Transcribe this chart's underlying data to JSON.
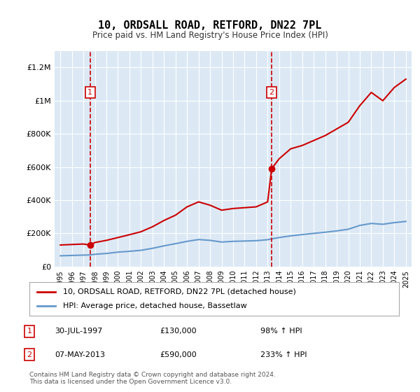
{
  "title": "10, ORDSALL ROAD, RETFORD, DN22 7PL",
  "subtitle": "Price paid vs. HM Land Registry's House Price Index (HPI)",
  "xlabel": "",
  "ylabel": "",
  "ylim": [
    0,
    1300000
  ],
  "xlim": [
    1994.5,
    2025.5
  ],
  "yticks": [
    0,
    200000,
    400000,
    600000,
    800000,
    1000000,
    1200000
  ],
  "ytick_labels": [
    "£0",
    "£200K",
    "£400K",
    "£600K",
    "£800K",
    "£1M",
    "£1.2M"
  ],
  "xticks": [
    1995,
    1996,
    1997,
    1998,
    1999,
    2000,
    2001,
    2002,
    2003,
    2004,
    2005,
    2006,
    2007,
    2008,
    2009,
    2010,
    2011,
    2012,
    2013,
    2014,
    2015,
    2016,
    2017,
    2018,
    2019,
    2020,
    2021,
    2022,
    2023,
    2024,
    2025
  ],
  "bg_color": "#dce9f5",
  "fig_bg_color": "#ffffff",
  "red_color": "#cc0000",
  "blue_color": "#6699cc",
  "transaction1": {
    "year": 1997.58,
    "price": 130000,
    "label": "1"
  },
  "transaction2": {
    "year": 2013.35,
    "price": 590000,
    "label": "2"
  },
  "legend_line1": "10, ORDSALL ROAD, RETFORD, DN22 7PL (detached house)",
  "legend_line2": "HPI: Average price, detached house, Bassetlaw",
  "annot1_date": "30-JUL-1997",
  "annot1_price": "£130,000",
  "annot1_hpi": "98% ↑ HPI",
  "annot2_date": "07-MAY-2013",
  "annot2_price": "£590,000",
  "annot2_hpi": "233% ↑ HPI",
  "footer": "Contains HM Land Registry data © Crown copyright and database right 2024.\nThis data is licensed under the Open Government Licence v3.0.",
  "hpi_years": [
    1995,
    1996,
    1997,
    1997.58,
    1998,
    1999,
    2000,
    2001,
    2002,
    2003,
    2004,
    2005,
    2006,
    2007,
    2008,
    2009,
    2010,
    2011,
    2012,
    2013,
    2013.35,
    2014,
    2015,
    2016,
    2017,
    2018,
    2019,
    2020,
    2021,
    2022,
    2023,
    2024,
    2025
  ],
  "hpi_red_values": [
    130000,
    133000,
    136000,
    130000,
    145000,
    158000,
    175000,
    192000,
    210000,
    240000,
    278000,
    310000,
    360000,
    390000,
    370000,
    340000,
    350000,
    355000,
    360000,
    390000,
    590000,
    650000,
    710000,
    730000,
    760000,
    790000,
    830000,
    870000,
    970000,
    1050000,
    1000000,
    1080000,
    1130000
  ],
  "hpi_blue_values": [
    65000,
    67000,
    69000,
    70000,
    74000,
    79000,
    87000,
    92000,
    98000,
    110000,
    125000,
    138000,
    152000,
    163000,
    158000,
    148000,
    152000,
    154000,
    156000,
    162000,
    167000,
    175000,
    185000,
    193000,
    200000,
    207000,
    215000,
    225000,
    248000,
    260000,
    255000,
    265000,
    272000
  ]
}
